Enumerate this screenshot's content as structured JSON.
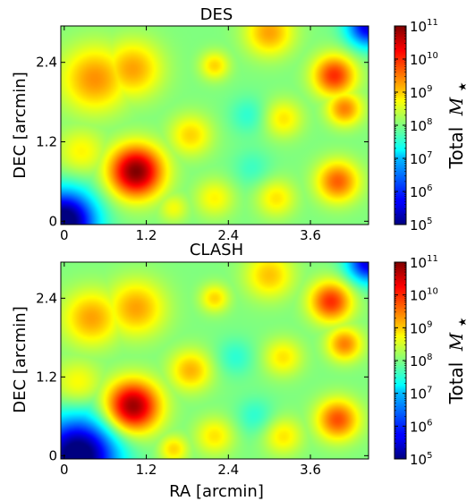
{
  "chart_data": [
    {
      "type": "heatmap",
      "title": "DES",
      "xlabel": "",
      "ylabel": "DEC [arcmin]",
      "xlim": [
        -0.05,
        4.45
      ],
      "ylim": [
        -0.05,
        2.95
      ],
      "xticks": [
        0,
        1.2,
        2.4,
        3.6
      ],
      "xtick_labels": [
        "0",
        "1.2",
        "2.4",
        "3.6"
      ],
      "yticks": [
        0,
        1.2,
        2.4
      ],
      "ytick_labels": [
        "0",
        "1.2",
        "2.4"
      ],
      "colorbar": {
        "label": "Total M★",
        "label_text": "Total",
        "label_symbol": "M",
        "label_sub": "★",
        "scale": "log",
        "min": 100000.0,
        "max": 100000000000.0,
        "tick_base": "10",
        "tick_exponents": [
          "5",
          "6",
          "7",
          "8",
          "9",
          "10",
          "11"
        ],
        "colormap": "jet"
      },
      "blobs_log_mass": [
        {
          "x": 1.05,
          "y": 0.75,
          "peak": 11.0,
          "sigma": 0.28
        },
        {
          "x": 0.45,
          "y": 2.15,
          "peak": 9.4,
          "sigma": 0.35
        },
        {
          "x": 1.0,
          "y": 2.3,
          "peak": 9.3,
          "sigma": 0.3
        },
        {
          "x": 3.95,
          "y": 2.2,
          "peak": 10.0,
          "sigma": 0.22
        },
        {
          "x": 4.1,
          "y": 1.7,
          "peak": 9.5,
          "sigma": 0.18
        },
        {
          "x": 4.0,
          "y": 0.6,
          "peak": 9.7,
          "sigma": 0.22
        },
        {
          "x": 3.0,
          "y": 2.85,
          "peak": 9.3,
          "sigma": 0.25
        },
        {
          "x": 1.85,
          "y": 1.3,
          "peak": 9.0,
          "sigma": 0.22
        },
        {
          "x": 2.2,
          "y": 2.35,
          "peak": 9.0,
          "sigma": 0.15
        },
        {
          "x": 3.1,
          "y": 0.35,
          "peak": 8.9,
          "sigma": 0.2
        },
        {
          "x": 2.2,
          "y": 0.35,
          "peak": 8.8,
          "sigma": 0.2
        },
        {
          "x": 3.2,
          "y": 1.55,
          "peak": 8.9,
          "sigma": 0.2
        },
        {
          "x": 0.25,
          "y": 1.05,
          "peak": 8.8,
          "sigma": 0.25
        },
        {
          "x": 1.6,
          "y": 0.2,
          "peak": 8.7,
          "sigma": 0.15
        }
      ],
      "background_log_mass": 8.0,
      "low_regions": [
        {
          "x": 0.0,
          "y": 0.0,
          "depth": 3.4,
          "sigma": 0.32
        },
        {
          "x": 4.45,
          "y": 2.95,
          "depth": 2.5,
          "sigma": 0.22
        },
        {
          "x": 2.7,
          "y": 1.6,
          "depth": 0.5,
          "sigma": 0.2
        },
        {
          "x": 2.75,
          "y": 0.8,
          "depth": 0.4,
          "sigma": 0.2
        }
      ]
    },
    {
      "type": "heatmap",
      "title": "CLASH",
      "xlabel": "RA [arcmin]",
      "ylabel": "DEC [arcmin]",
      "xlim": [
        -0.05,
        4.45
      ],
      "ylim": [
        -0.05,
        2.95
      ],
      "xticks": [
        0,
        1.2,
        2.4,
        3.6
      ],
      "xtick_labels": [
        "0",
        "1.2",
        "2.4",
        "3.6"
      ],
      "yticks": [
        0,
        1.2,
        2.4
      ],
      "ytick_labels": [
        "0",
        "1.2",
        "2.4"
      ],
      "colorbar": {
        "label": "Total M★",
        "label_text": "Total",
        "label_symbol": "M",
        "label_sub": "★",
        "scale": "log",
        "min": 100000.0,
        "max": 100000000000.0,
        "tick_base": "10",
        "tick_exponents": [
          "5",
          "6",
          "7",
          "8",
          "9",
          "10",
          "11"
        ],
        "colormap": "jet"
      },
      "blobs_log_mass": [
        {
          "x": 1.0,
          "y": 0.75,
          "peak": 10.9,
          "sigma": 0.28
        },
        {
          "x": 0.4,
          "y": 2.1,
          "peak": 9.3,
          "sigma": 0.3
        },
        {
          "x": 1.05,
          "y": 2.25,
          "peak": 9.3,
          "sigma": 0.3
        },
        {
          "x": 3.9,
          "y": 2.35,
          "peak": 10.0,
          "sigma": 0.22
        },
        {
          "x": 4.1,
          "y": 1.7,
          "peak": 9.5,
          "sigma": 0.18
        },
        {
          "x": 4.0,
          "y": 0.55,
          "peak": 9.8,
          "sigma": 0.22
        },
        {
          "x": 3.0,
          "y": 2.75,
          "peak": 9.1,
          "sigma": 0.25
        },
        {
          "x": 1.85,
          "y": 1.3,
          "peak": 9.2,
          "sigma": 0.22
        },
        {
          "x": 2.2,
          "y": 2.4,
          "peak": 9.0,
          "sigma": 0.15
        },
        {
          "x": 3.2,
          "y": 0.3,
          "peak": 8.9,
          "sigma": 0.2
        },
        {
          "x": 2.2,
          "y": 0.3,
          "peak": 8.9,
          "sigma": 0.2
        },
        {
          "x": 3.2,
          "y": 1.5,
          "peak": 8.9,
          "sigma": 0.2
        },
        {
          "x": 0.2,
          "y": 1.1,
          "peak": 8.8,
          "sigma": 0.25
        },
        {
          "x": 1.6,
          "y": 0.1,
          "peak": 9.0,
          "sigma": 0.15
        }
      ],
      "background_log_mass": 8.0,
      "low_regions": [
        {
          "x": 0.2,
          "y": 0.0,
          "depth": 3.4,
          "sigma": 0.4
        },
        {
          "x": 4.45,
          "y": 2.95,
          "depth": 2.5,
          "sigma": 0.22
        },
        {
          "x": 2.5,
          "y": 1.5,
          "depth": 0.5,
          "sigma": 0.2
        },
        {
          "x": 2.8,
          "y": 0.6,
          "depth": 0.5,
          "sigma": 0.2
        }
      ]
    }
  ]
}
